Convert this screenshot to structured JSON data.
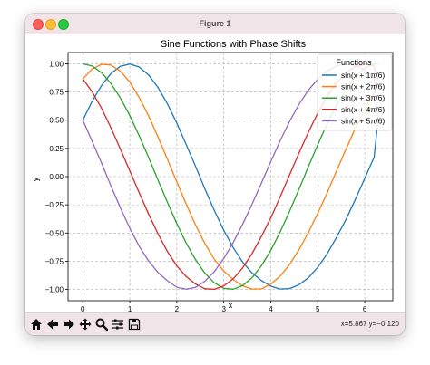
{
  "window": {
    "title": "Figure 1"
  },
  "toolbar": {
    "icons": [
      "home-icon",
      "back-arrow-icon",
      "forward-arrow-icon",
      "pan-move-icon",
      "zoom-magnifier-icon",
      "configure-sliders-icon",
      "save-floppy-icon"
    ],
    "coords": "x=5.867 y=−0.120"
  },
  "chart_data": {
    "type": "line",
    "title": "Sine Functions with Phase Shifts",
    "xlabel": "x",
    "ylabel": "y",
    "xlim": [
      -0.314,
      6.597
    ],
    "ylim": [
      -1.1,
      1.1
    ],
    "x_ticks": [
      0,
      1,
      2,
      3,
      4,
      5,
      6
    ],
    "y_ticks": [
      1.0,
      0.75,
      0.5,
      0.25,
      0.0,
      -0.25,
      -0.5,
      -0.75,
      -1.0
    ],
    "x_tick_labels": [
      "0",
      "1",
      "2",
      "3",
      "4",
      "5",
      "6"
    ],
    "y_tick_labels": [
      "1.00",
      "0.75",
      "0.50",
      "0.25",
      "0.00",
      "−0.25",
      "−0.50",
      "−0.75",
      "−1.00"
    ],
    "x": [
      0.0,
      0.2,
      0.4,
      0.6,
      0.8,
      1.0,
      1.2,
      1.4,
      1.6,
      1.8,
      2.0,
      2.2,
      2.4,
      2.6,
      2.8,
      3.0,
      3.2,
      3.4,
      3.6,
      3.8,
      4.0,
      4.2,
      4.4,
      4.6,
      4.8,
      5.0,
      5.2,
      5.4,
      5.6,
      5.8,
      6.0,
      6.2,
      6.283
    ],
    "series": [
      {
        "name": "sin(x + 1π/6)",
        "color": "#1f77b4",
        "values": [
          0.5,
          0.6681,
          0.8084,
          0.9135,
          0.9777,
          0.9976,
          0.9719,
          0.9017,
          0.7909,
          0.6455,
          0.4737,
          0.2854,
          0.0905,
          -0.1102,
          -0.3012,
          -0.4758,
          -0.6288,
          -0.7562,
          -0.8537,
          -0.9213,
          -0.9717,
          -0.9962,
          -0.9923,
          -0.959,
          -0.8965,
          -0.804,
          -0.6851,
          -0.538,
          -0.3795,
          -0.2025,
          -0.0163,
          0.1722,
          0.5
        ]
      },
      {
        "name": "sin(x + 2π/6)",
        "color": "#ff7f0e",
        "values": [
          0.866,
          0.9536,
          0.9953,
          0.9888,
          0.9349,
          0.8386,
          0.7028,
          0.5385,
          0.3526,
          0.1546,
          -0.0466,
          -0.2443,
          -0.4299,
          -0.5945,
          -0.7321,
          -0.8378,
          -0.9113,
          -0.9681,
          -0.9967,
          -0.9949,
          -0.9538,
          -0.8824,
          -0.779,
          -0.6483,
          -0.496,
          -0.3253,
          -0.1453,
          0.051,
          0.2434,
          0.4275,
          0.5934,
          0.7368,
          0.866
        ]
      },
      {
        "name": "sin(x + 3π/6)",
        "color": "#2ca02c",
        "values": [
          1.0,
          0.9801,
          0.9211,
          0.8253,
          0.6967,
          0.5403,
          0.3624,
          0.17,
          -0.0292,
          -0.2272,
          -0.4161,
          -0.5885,
          -0.7374,
          -0.8569,
          -0.9422,
          -0.99,
          -0.9983,
          -0.9668,
          -0.8968,
          -0.791,
          -0.6536,
          -0.4903,
          -0.3073,
          -0.1122,
          0.0875,
          0.2837,
          0.4685,
          0.6347,
          0.7756,
          0.8855,
          0.9602,
          0.9965,
          1.0
        ]
      },
      {
        "name": "sin(x + 4π/6)",
        "color": "#d62728",
        "values": [
          0.866,
          0.7506,
          0.6043,
          0.4328,
          0.2451,
          0.05,
          -0.143,
          -0.3316,
          -0.5059,
          -0.6629,
          -0.7919,
          -0.8858,
          -0.9528,
          -0.9942,
          -0.9985,
          -0.9684,
          -0.9069,
          -0.8098,
          -0.683,
          -0.5317,
          -0.366,
          -0.181,
          0.015,
          0.2085,
          0.393,
          0.564,
          0.7123,
          0.8317,
          0.9193,
          0.9743,
          0.9952,
          0.9806,
          0.866
        ]
      },
      {
        "name": "sin(x + 5π/6)",
        "color": "#9467bd",
        "values": [
          0.5,
          0.3121,
          0.1177,
          -0.0815,
          -0.2768,
          -0.4576,
          -0.6163,
          -0.7472,
          -0.8494,
          -0.9232,
          -0.9801,
          -0.9983,
          -0.9813,
          -0.9271,
          -0.8414,
          -0.7249,
          -0.5856,
          -0.4229,
          -0.2456,
          -0.0588,
          0.1334,
          0.3174,
          0.4891,
          0.6406,
          0.7663,
          0.8632,
          0.9378,
          0.9822,
          0.9987,
          0.9856,
          0.9433,
          0.8705,
          0.5
        ]
      }
    ],
    "legend": {
      "title": "Functions",
      "position": "top-right"
    },
    "grid": true
  }
}
